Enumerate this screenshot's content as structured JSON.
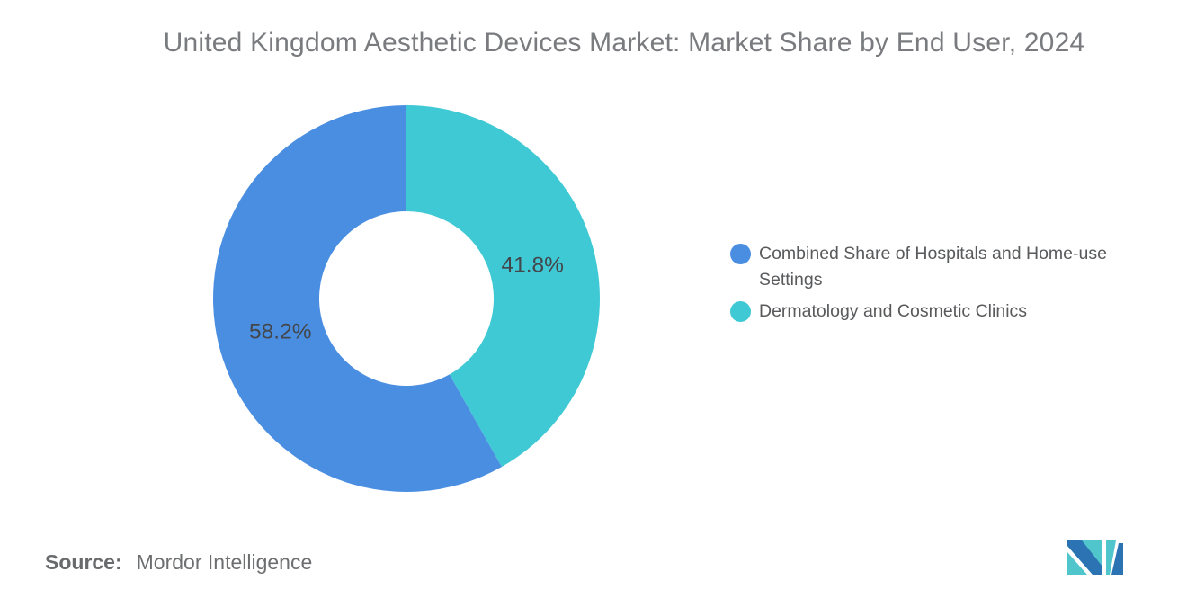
{
  "title": "United Kingdom Aesthetic Devices Market: Market Share by End User, 2024",
  "source": {
    "label": "Source:",
    "value": "Mordor Intelligence"
  },
  "legend": {
    "items": [
      {
        "label": "Combined Share of Hospitals and Home-use Settings",
        "color": "#4A8EE2"
      },
      {
        "label": "Dermatology and Cosmetic Clinics",
        "color": "#3FC9D4"
      }
    ]
  },
  "logo": {
    "alt": "Mordor Intelligence logo",
    "blue": "#2B73B2",
    "teal": "#50C5CC"
  },
  "chart_data": {
    "type": "pie",
    "subtype": "donut",
    "title": "United Kingdom Aesthetic Devices Market: Market Share by End User, 2024",
    "categories": [
      "Combined Share of Hospitals and Home-use Settings",
      "Dermatology and Cosmetic Clinics"
    ],
    "values": [
      58.2,
      41.8
    ],
    "data_labels": [
      "58.2%",
      "41.8%"
    ],
    "colors": [
      "#4A8EE2",
      "#3FC9D4"
    ],
    "data_label_color": "#43474C",
    "legend_position": "right",
    "inner_radius_ratio": 0.45,
    "first_slice_direction": "counterclockwise-from-top",
    "background": "#FFFFFF"
  }
}
